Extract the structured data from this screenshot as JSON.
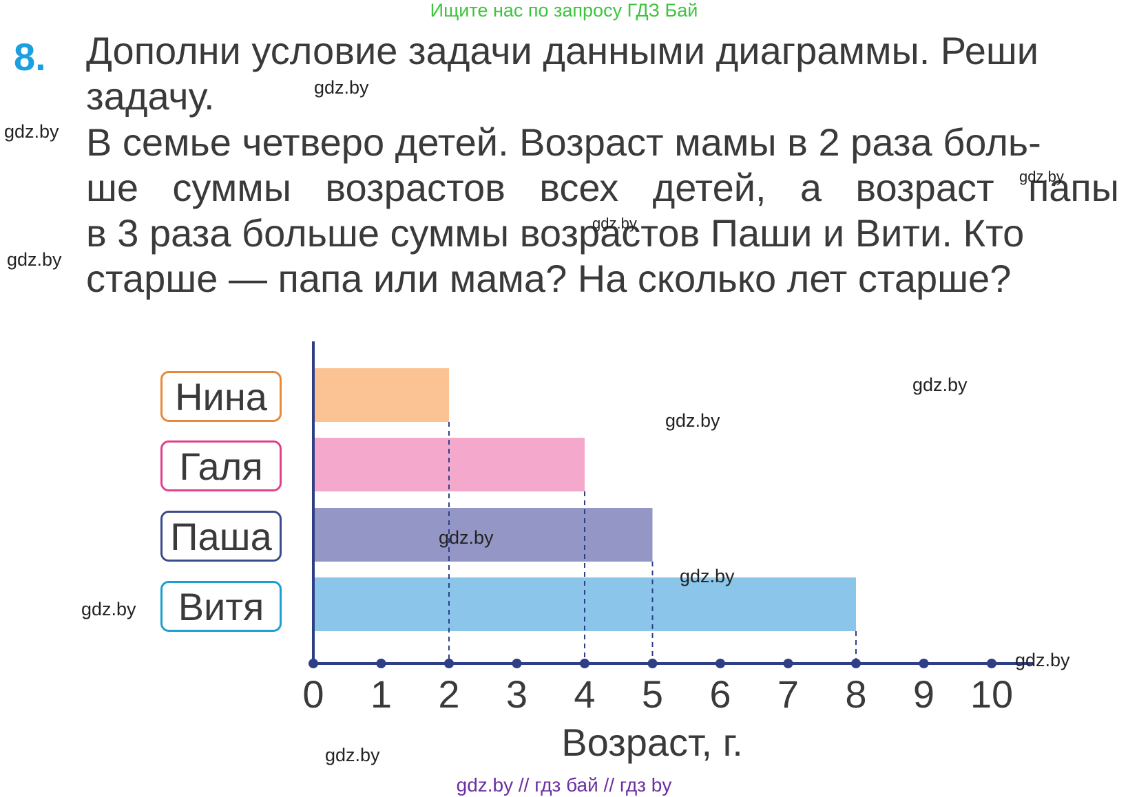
{
  "header_note": "Ищите нас по запросу ГДЗ Бай",
  "task": {
    "number": "8.",
    "lines": [
      "Дополни условие задачи данными диаграммы. Реши",
      "задачу.",
      "В семье четверо детей. Возраст мамы в 2 раза боль-",
      "ше суммы возрастов всех детей, а возраст папы",
      "в 3 раза больше суммы возрастов Паши и Вити. Кто",
      "старше — папа или мама? На сколько лет старше?"
    ]
  },
  "watermarks": [
    "gdz.by",
    "gdz.by",
    "gdz.by",
    "gdz.by",
    "gdz.by",
    "gdz.by",
    "gdz.by",
    "gdz.by",
    "gdz.by",
    "gdz.by",
    "gdz.by",
    "gdz.by"
  ],
  "chart_data": {
    "type": "bar",
    "orientation": "horizontal",
    "categories": [
      "Нина",
      "Галя",
      "Паша",
      "Витя"
    ],
    "values": [
      2,
      4,
      5,
      8
    ],
    "category_border_colors": [
      "#e8883a",
      "#e0408a",
      "#3a4a8a",
      "#1a9fd0"
    ],
    "bar_colors": [
      "#fbc393",
      "#f4a8cb",
      "#9497c6",
      "#8bc6ea"
    ],
    "xlabel": "Возраст, г.",
    "xlim": [
      0,
      10
    ],
    "x_ticks": [
      "0",
      "1",
      "2",
      "3",
      "4",
      "5",
      "6",
      "7",
      "8",
      "9",
      "10"
    ],
    "axis_color": "#2f3f86",
    "grid": false
  },
  "footer": "gdz.by  //  гдз бай  //  гдз by"
}
